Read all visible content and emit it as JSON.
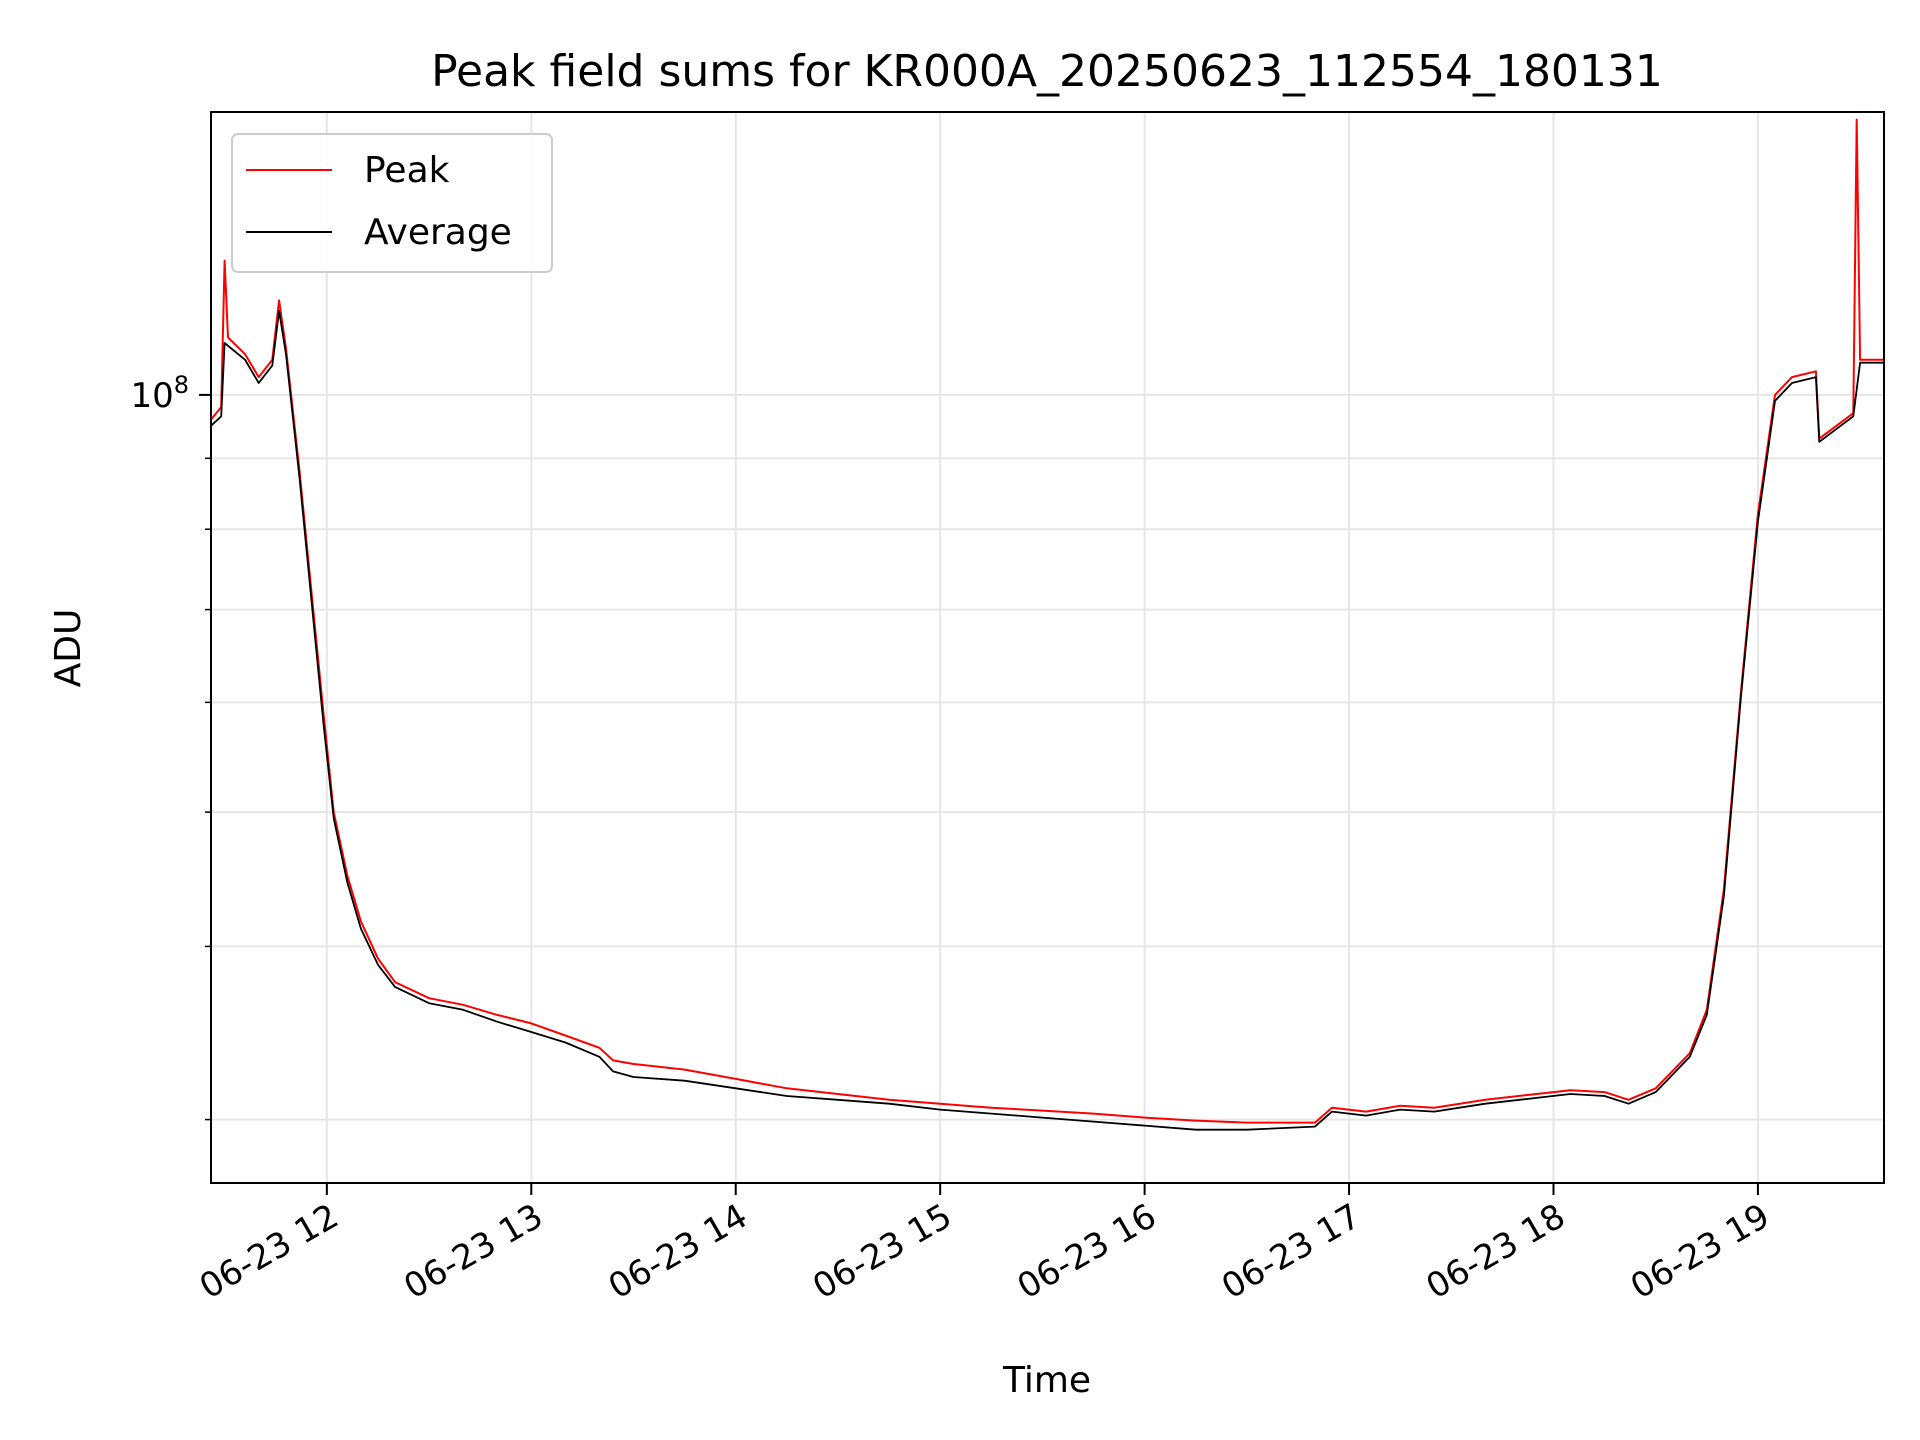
{
  "chart_data": {
    "type": "line",
    "title": "Peak field sums for KR000A_20250623_112554_180131",
    "xlabel": "Time",
    "ylabel": "ADU",
    "x_scale": "time",
    "y_scale": "log",
    "xlim": [
      "2025-06-23 11:26",
      "2025-06-23 19:37"
    ],
    "ylim": [
      27000000,
      160000000
    ],
    "grid": true,
    "legend_position": "top-left",
    "x_ticks": [
      {
        "value": "2025-06-23 12:00",
        "label": "06-23 12"
      },
      {
        "value": "2025-06-23 13:00",
        "label": "06-23 13"
      },
      {
        "value": "2025-06-23 14:00",
        "label": "06-23 14"
      },
      {
        "value": "2025-06-23 15:00",
        "label": "06-23 15"
      },
      {
        "value": "2025-06-23 16:00",
        "label": "06-23 16"
      },
      {
        "value": "2025-06-23 17:00",
        "label": "06-23 17"
      },
      {
        "value": "2025-06-23 18:00",
        "label": "06-23 18"
      },
      {
        "value": "2025-06-23 19:00",
        "label": "06-23 19"
      }
    ],
    "y_major_ticks": [
      {
        "value": 100000000,
        "label": "10^8"
      }
    ],
    "y_minor_ticks": [
      30000000,
      40000000,
      50000000,
      60000000,
      70000000,
      80000000,
      90000000
    ],
    "series": [
      {
        "name": "Peak",
        "color": "#ff0000",
        "points": [
          [
            "2025-06-23 11:26",
            96000000
          ],
          [
            "2025-06-23 11:29",
            98000000
          ],
          [
            "2025-06-23 11:30",
            125000000
          ],
          [
            "2025-06-23 11:31",
            110000000
          ],
          [
            "2025-06-23 11:36",
            107000000
          ],
          [
            "2025-06-23 11:40",
            103000000
          ],
          [
            "2025-06-23 11:44",
            106000000
          ],
          [
            "2025-06-23 11:46",
            117000000
          ],
          [
            "2025-06-23 11:48",
            108000000
          ],
          [
            "2025-06-23 11:52",
            88000000
          ],
          [
            "2025-06-23 11:56",
            70000000
          ],
          [
            "2025-06-23 11:59",
            59000000
          ],
          [
            "2025-06-23 12:02",
            50000000
          ],
          [
            "2025-06-23 12:06",
            45000000
          ],
          [
            "2025-06-23 12:10",
            41700000
          ],
          [
            "2025-06-23 12:15",
            39200000
          ],
          [
            "2025-06-23 12:20",
            37700000
          ],
          [
            "2025-06-23 12:30",
            36700000
          ],
          [
            "2025-06-23 12:40",
            36300000
          ],
          [
            "2025-06-23 12:50",
            35700000
          ],
          [
            "2025-06-23 13:00",
            35200000
          ],
          [
            "2025-06-23 13:10",
            34500000
          ],
          [
            "2025-06-23 13:20",
            33800000
          ],
          [
            "2025-06-23 13:24",
            33100000
          ],
          [
            "2025-06-23 13:30",
            32900000
          ],
          [
            "2025-06-23 13:45",
            32600000
          ],
          [
            "2025-06-23 14:00",
            32100000
          ],
          [
            "2025-06-23 14:15",
            31600000
          ],
          [
            "2025-06-23 14:30",
            31300000
          ],
          [
            "2025-06-23 14:45",
            31000000
          ],
          [
            "2025-06-23 15:00",
            30800000
          ],
          [
            "2025-06-23 15:15",
            30600000
          ],
          [
            "2025-06-23 15:30",
            30450000
          ],
          [
            "2025-06-23 15:45",
            30300000
          ],
          [
            "2025-06-23 16:00",
            30100000
          ],
          [
            "2025-06-23 16:15",
            29950000
          ],
          [
            "2025-06-23 16:30",
            29850000
          ],
          [
            "2025-06-23 16:50",
            29850000
          ],
          [
            "2025-06-23 16:55",
            30600000
          ],
          [
            "2025-06-23 17:05",
            30400000
          ],
          [
            "2025-06-23 17:15",
            30700000
          ],
          [
            "2025-06-23 17:25",
            30600000
          ],
          [
            "2025-06-23 17:40",
            31000000
          ],
          [
            "2025-06-23 17:55",
            31300000
          ],
          [
            "2025-06-23 18:05",
            31500000
          ],
          [
            "2025-06-23 18:15",
            31400000
          ],
          [
            "2025-06-23 18:22",
            31000000
          ],
          [
            "2025-06-23 18:30",
            31600000
          ],
          [
            "2025-06-23 18:40",
            33500000
          ],
          [
            "2025-06-23 18:45",
            36000000
          ],
          [
            "2025-06-23 18:50",
            44000000
          ],
          [
            "2025-06-23 18:55",
            61000000
          ],
          [
            "2025-06-23 19:00",
            82000000
          ],
          [
            "2025-06-23 19:05",
            100000000
          ],
          [
            "2025-06-23 19:10",
            103000000
          ],
          [
            "2025-06-23 19:17",
            104000000
          ],
          [
            "2025-06-23 19:18",
            93000000
          ],
          [
            "2025-06-23 19:28",
            97000000
          ],
          [
            "2025-06-23 19:29",
            158000000
          ],
          [
            "2025-06-23 19:30",
            106000000
          ],
          [
            "2025-06-23 19:37",
            106000000
          ]
        ]
      },
      {
        "name": "Average",
        "color": "#000000",
        "points": [
          [
            "2025-06-23 11:26",
            95000000
          ],
          [
            "2025-06-23 11:29",
            96500000
          ],
          [
            "2025-06-23 11:30",
            109000000
          ],
          [
            "2025-06-23 11:36",
            106000000
          ],
          [
            "2025-06-23 11:40",
            102000000
          ],
          [
            "2025-06-23 11:44",
            105000000
          ],
          [
            "2025-06-23 11:46",
            115000000
          ],
          [
            "2025-06-23 11:48",
            107000000
          ],
          [
            "2025-06-23 11:52",
            87000000
          ],
          [
            "2025-06-23 11:56",
            69000000
          ],
          [
            "2025-06-23 11:59",
            58000000
          ],
          [
            "2025-06-23 12:02",
            49500000
          ],
          [
            "2025-06-23 12:06",
            44500000
          ],
          [
            "2025-06-23 12:10",
            41200000
          ],
          [
            "2025-06-23 12:15",
            38800000
          ],
          [
            "2025-06-23 12:20",
            37400000
          ],
          [
            "2025-06-23 12:30",
            36400000
          ],
          [
            "2025-06-23 12:40",
            36000000
          ],
          [
            "2025-06-23 12:50",
            35300000
          ],
          [
            "2025-06-23 13:00",
            34700000
          ],
          [
            "2025-06-23 13:10",
            34100000
          ],
          [
            "2025-06-23 13:20",
            33300000
          ],
          [
            "2025-06-23 13:24",
            32500000
          ],
          [
            "2025-06-23 13:30",
            32200000
          ],
          [
            "2025-06-23 13:45",
            32000000
          ],
          [
            "2025-06-23 14:00",
            31600000
          ],
          [
            "2025-06-23 14:15",
            31200000
          ],
          [
            "2025-06-23 14:30",
            31000000
          ],
          [
            "2025-06-23 14:45",
            30800000
          ],
          [
            "2025-06-23 15:00",
            30500000
          ],
          [
            "2025-06-23 15:15",
            30300000
          ],
          [
            "2025-06-23 15:30",
            30100000
          ],
          [
            "2025-06-23 15:45",
            29900000
          ],
          [
            "2025-06-23 16:00",
            29700000
          ],
          [
            "2025-06-23 16:15",
            29500000
          ],
          [
            "2025-06-23 16:30",
            29500000
          ],
          [
            "2025-06-23 16:50",
            29650000
          ],
          [
            "2025-06-23 16:55",
            30400000
          ],
          [
            "2025-06-23 17:05",
            30200000
          ],
          [
            "2025-06-23 17:15",
            30500000
          ],
          [
            "2025-06-23 17:25",
            30400000
          ],
          [
            "2025-06-23 17:40",
            30800000
          ],
          [
            "2025-06-23 17:55",
            31100000
          ],
          [
            "2025-06-23 18:05",
            31300000
          ],
          [
            "2025-06-23 18:15",
            31200000
          ],
          [
            "2025-06-23 18:22",
            30800000
          ],
          [
            "2025-06-23 18:30",
            31400000
          ],
          [
            "2025-06-23 18:40",
            33300000
          ],
          [
            "2025-06-23 18:45",
            35700000
          ],
          [
            "2025-06-23 18:50",
            43500000
          ],
          [
            "2025-06-23 18:55",
            60500000
          ],
          [
            "2025-06-23 19:00",
            81000000
          ],
          [
            "2025-06-23 19:05",
            99000000
          ],
          [
            "2025-06-23 19:10",
            102000000
          ],
          [
            "2025-06-23 19:17",
            103000000
          ],
          [
            "2025-06-23 19:18",
            92500000
          ],
          [
            "2025-06-23 19:28",
            96500000
          ],
          [
            "2025-06-23 19:30",
            105500000
          ],
          [
            "2025-06-23 19:37",
            105500000
          ]
        ]
      }
    ]
  }
}
